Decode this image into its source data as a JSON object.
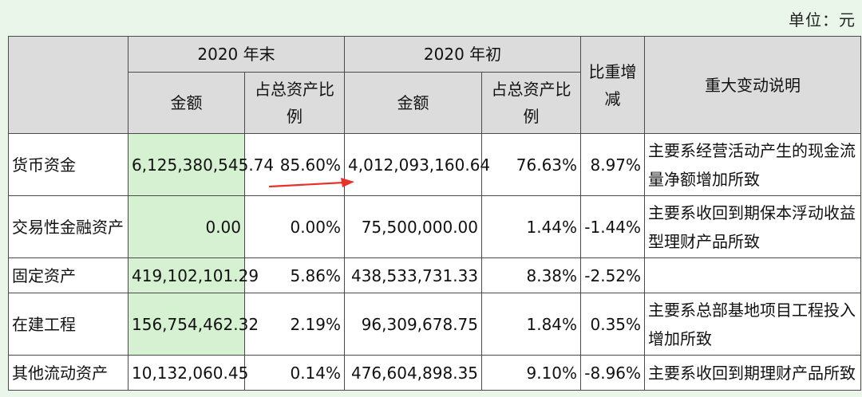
{
  "unit_label": "单位：元",
  "header": {
    "end_2020": "2020 年末",
    "begin_2020": "2020 年初",
    "amount": "金额",
    "ratio": "占总资产比例",
    "change": "比重增减",
    "explanation": "重大变动说明"
  },
  "rows": [
    {
      "item": "货币资金",
      "end_amount": "6,125,380,545.74",
      "end_ratio": "85.60%",
      "begin_amount": "4,012,093,160.64",
      "begin_ratio": "76.63%",
      "change": "8.97%",
      "note": "主要系经营活动产生的现金流量净额增加所致"
    },
    {
      "item": "交易性金融资产",
      "end_amount": "0.00",
      "end_ratio": "0.00%",
      "begin_amount": "75,500,000.00",
      "begin_ratio": "1.44%",
      "change": "-1.44%",
      "note": "主要系收回到期保本浮动收益型理财产品所致"
    },
    {
      "item": "固定资产",
      "end_amount": "419,102,101.29",
      "end_ratio": "5.86%",
      "begin_amount": "438,533,731.33",
      "begin_ratio": "8.38%",
      "change": "-2.52%",
      "note": ""
    },
    {
      "item": "在建工程",
      "end_amount": "156,754,462.32",
      "end_ratio": "2.19%",
      "begin_amount": "96,309,678.75",
      "begin_ratio": "1.84%",
      "change": "0.35%",
      "note": "主要系总部基地项目工程投入增加所致"
    },
    {
      "item": "其他流动资产",
      "end_amount": "10,132,060.45",
      "end_ratio": "0.14%",
      "begin_amount": "476,604,898.35",
      "begin_ratio": "9.10%",
      "change": "-8.96%",
      "note": "主要系收回到期理财产品所致"
    }
  ],
  "colors": {
    "background": "#e9f6e9",
    "header_gray": "#dcdcdc",
    "highlight_green": "#d6f0d2",
    "arrow_red": "#e8312a"
  }
}
